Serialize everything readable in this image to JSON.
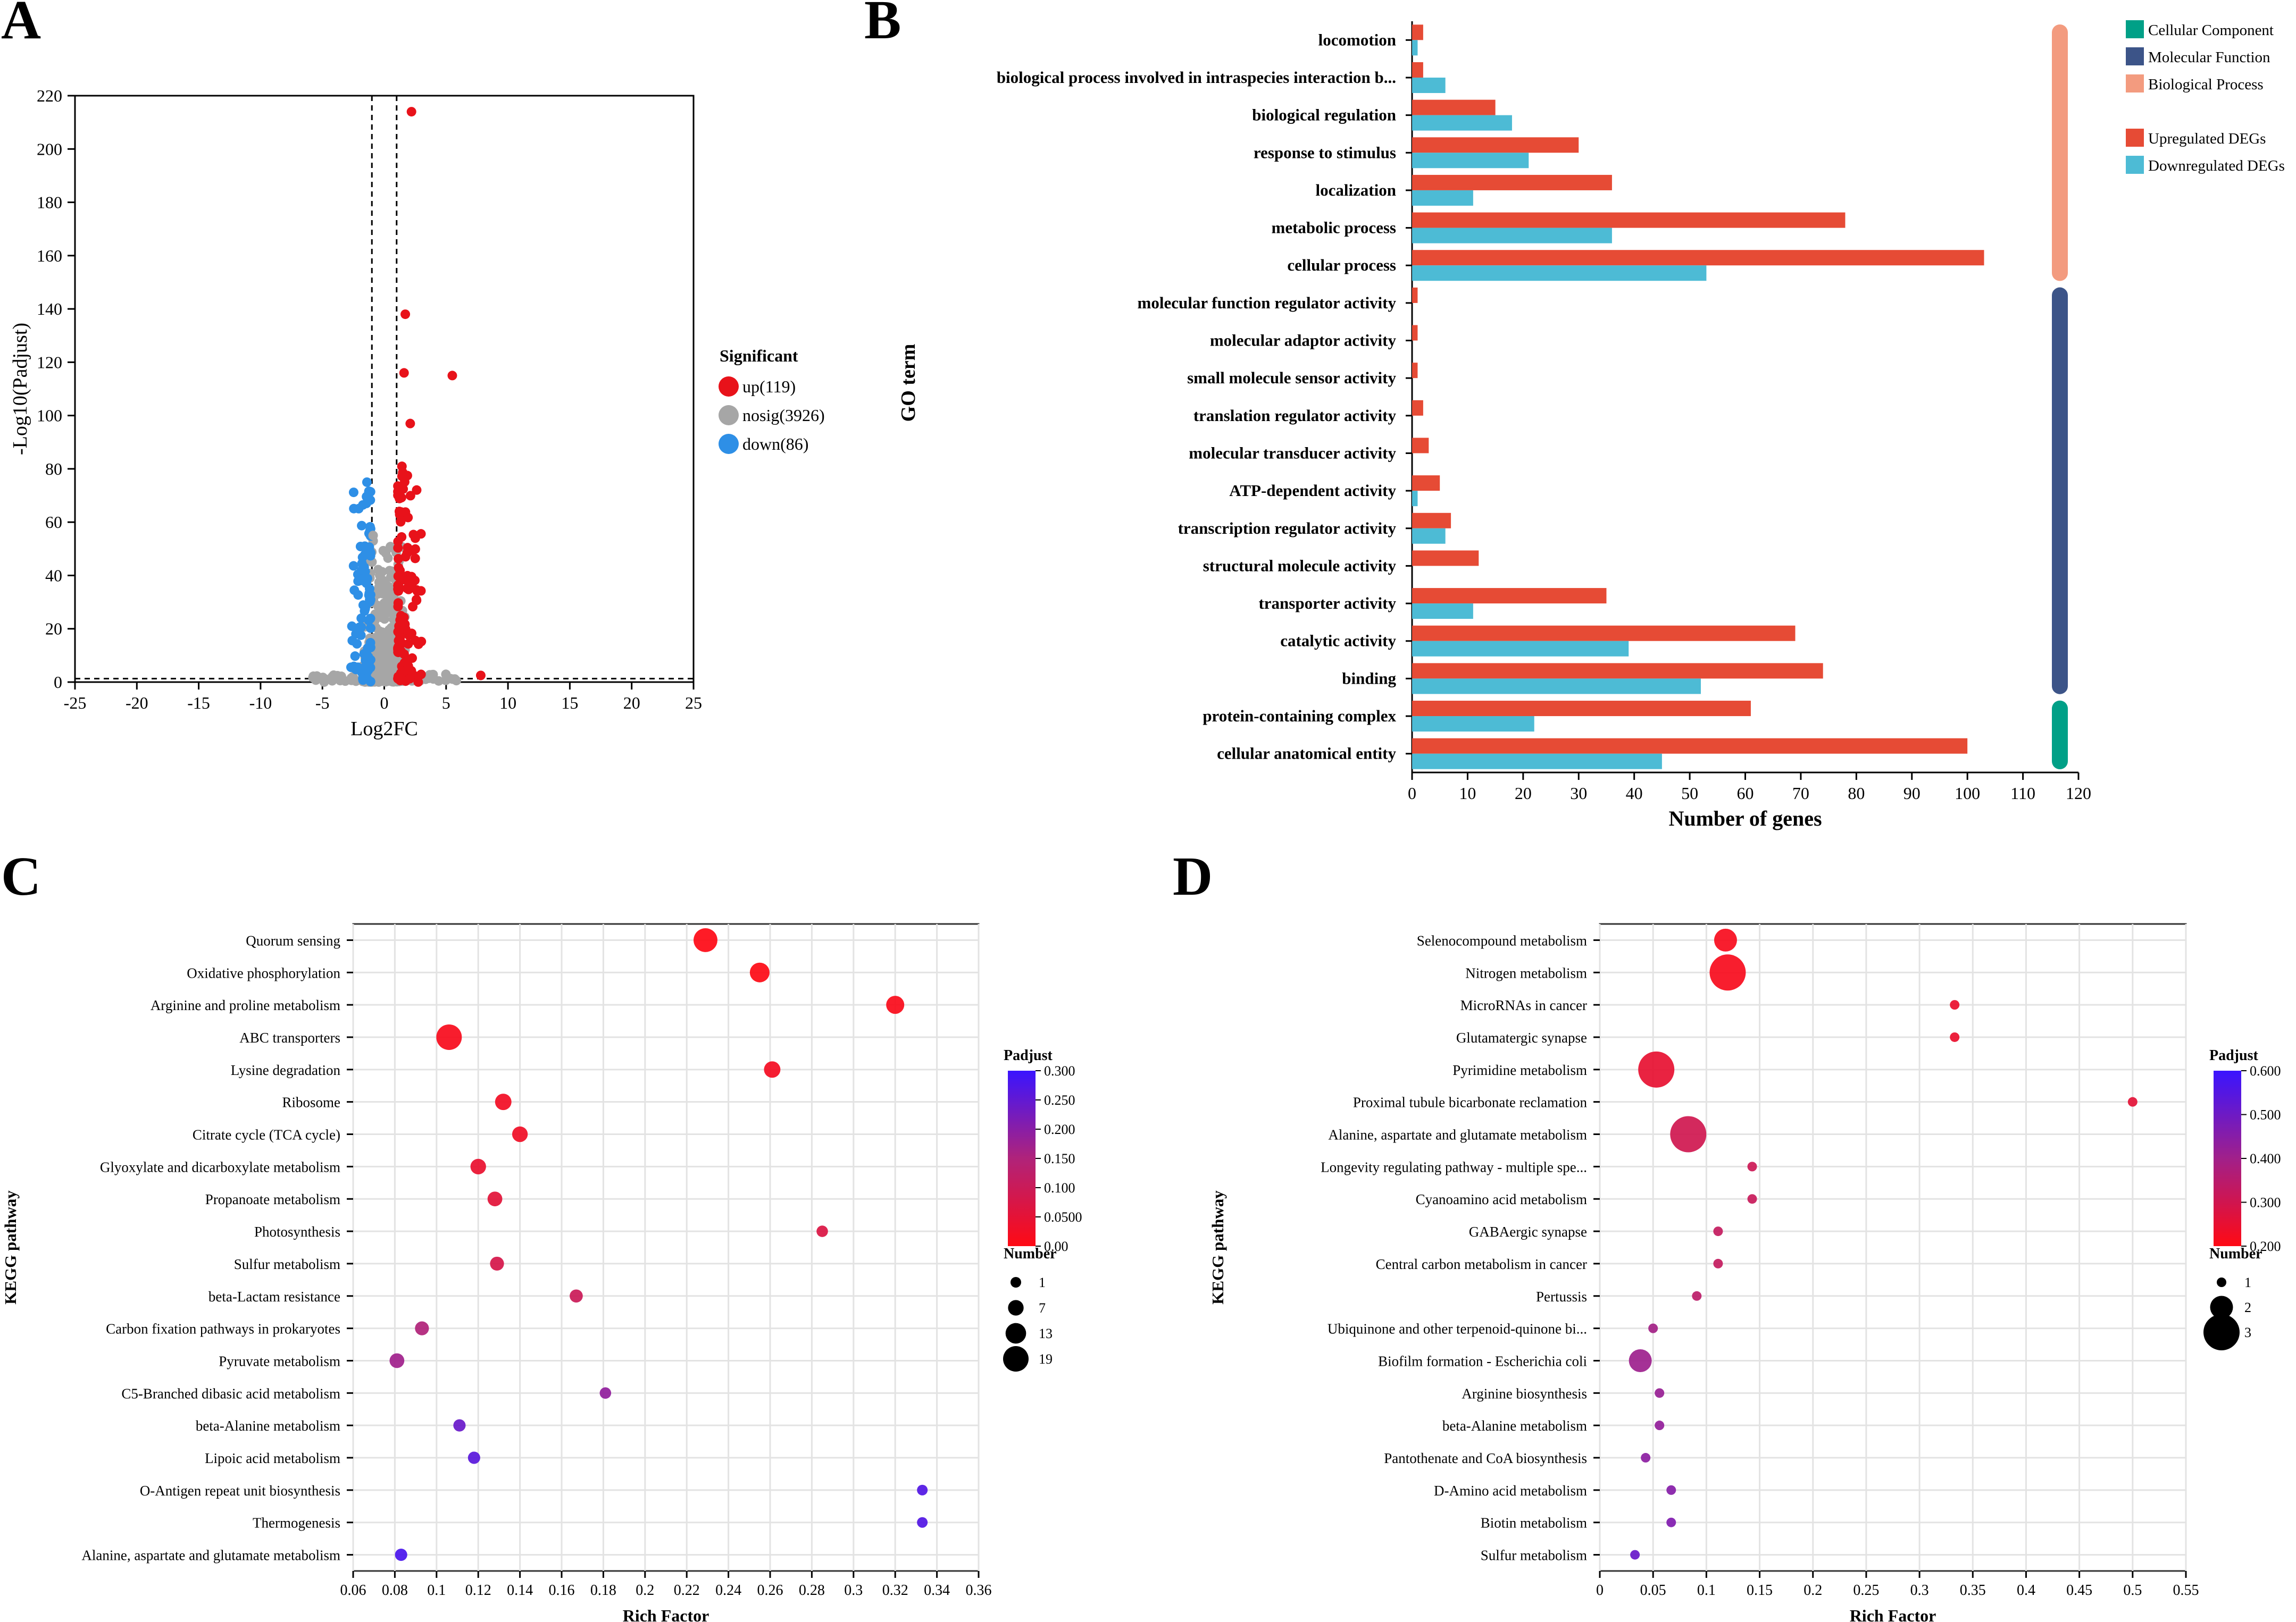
{
  "chart_data": [
    {
      "panel": "A",
      "type": "scatter",
      "title": "",
      "xlabel": "Log2FC",
      "ylabel": "-Log10(Padjust)",
      "xlim": [
        -25,
        25
      ],
      "ylim": [
        0,
        220
      ],
      "xticks": [
        -25,
        -20,
        -15,
        -10,
        -5,
        0,
        5,
        10,
        15,
        20,
        25
      ],
      "yticks": [
        0,
        20,
        40,
        60,
        80,
        100,
        120,
        140,
        160,
        180,
        200,
        220
      ],
      "fc_threshold": 1,
      "padj_threshold_line": 1.3,
      "legend": {
        "title": "Significant",
        "entries": [
          {
            "label": "up(119)",
            "color": "#e8121a",
            "key": "up"
          },
          {
            "label": "nosig(3926)",
            "color": "#a6a6a6",
            "key": "nosig"
          },
          {
            "label": "down(86)",
            "color": "#2e8fe6",
            "key": "down"
          }
        ]
      },
      "notable_points": [
        {
          "group": "up",
          "x": 2.2,
          "y": 214
        },
        {
          "group": "up",
          "x": 1.7,
          "y": 138
        },
        {
          "group": "up",
          "x": 1.6,
          "y": 116
        },
        {
          "group": "up",
          "x": 5.5,
          "y": 115
        },
        {
          "group": "up",
          "x": 2.1,
          "y": 97
        },
        {
          "group": "up",
          "x": 7.8,
          "y": 2.5
        },
        {
          "group": "down",
          "x": -1.4,
          "y": 75
        },
        {
          "group": "nosig",
          "x": -0.9,
          "y": 55
        }
      ]
    },
    {
      "panel": "B",
      "type": "bar",
      "orientation": "horizontal",
      "ylabel": "GO term",
      "xlabel": "Number of genes",
      "xlim": [
        0,
        120
      ],
      "xticks": [
        0,
        10,
        20,
        30,
        40,
        50,
        60,
        70,
        80,
        90,
        100,
        110,
        120
      ],
      "categories": [
        "locomotion",
        "biological process involved in intraspecies interaction b...",
        "biological regulation",
        "response to stimulus",
        "localization",
        "metabolic process",
        "cellular process",
        "molecular function regulator activity",
        "molecular adaptor activity",
        "small molecule sensor activity",
        "translation regulator activity",
        "molecular transducer activity",
        "ATP-dependent activity",
        "transcription regulator activity",
        "structural molecule activity",
        "transporter activity",
        "catalytic activity",
        "binding",
        "protein-containing complex",
        "cellular anatomical entity"
      ],
      "category_class": [
        "BP",
        "BP",
        "BP",
        "BP",
        "BP",
        "BP",
        "BP",
        "MF",
        "MF",
        "MF",
        "MF",
        "MF",
        "MF",
        "MF",
        "MF",
        "MF",
        "MF",
        "MF",
        "CC",
        "CC"
      ],
      "series": [
        {
          "name": "Upregulated DEGs",
          "color": "#e64b35",
          "values": [
            2,
            2,
            15,
            30,
            36,
            78,
            103,
            1,
            1,
            1,
            2,
            3,
            5,
            7,
            12,
            35,
            69,
            74,
            61,
            100
          ]
        },
        {
          "name": "Downregulated DEGs",
          "color": "#4dbbd5",
          "values": [
            1,
            6,
            18,
            21,
            11,
            36,
            53,
            0,
            0,
            0,
            0,
            0,
            1,
            6,
            0,
            11,
            39,
            52,
            22,
            45
          ]
        }
      ],
      "class_legend": [
        {
          "key": "CC",
          "label": "Cellular Component",
          "color": "#00a087"
        },
        {
          "key": "MF",
          "label": "Molecular Function",
          "color": "#3c5488"
        },
        {
          "key": "BP",
          "label": "Biological Process",
          "color": "#f39b7f"
        }
      ]
    },
    {
      "panel": "C",
      "type": "scatter",
      "subtype": "bubble",
      "ylabel": "KEGG pathway",
      "xlabel": "Rich Factor",
      "xlim": [
        0.06,
        0.36
      ],
      "xticks": [
        "0.06",
        "0.08",
        "0.1",
        "0.12",
        "0.14",
        "0.16",
        "0.18",
        "0.2",
        "0.22",
        "0.24",
        "0.26",
        "0.28",
        "0.3",
        "0.32",
        "0.34",
        "0.36"
      ],
      "color_scale": {
        "title": "Padjust",
        "min": 0,
        "max": 0.3,
        "ticks": [
          "0.300",
          "0.250",
          "0.200",
          "0.150",
          "0.100",
          "0.0500",
          "0.00"
        ]
      },
      "size_scale": {
        "title": "Number",
        "ticks": [
          1,
          7,
          13,
          19
        ]
      },
      "pathways": [
        {
          "name": "Quorum sensing",
          "rich_factor": 0.229,
          "number": 17,
          "padjust": 0.001
        },
        {
          "name": "Oxidative phosphorylation",
          "rich_factor": 0.255,
          "number": 12,
          "padjust": 0.003
        },
        {
          "name": "Arginine and proline metabolism",
          "rich_factor": 0.32,
          "number": 10,
          "padjust": 0.01
        },
        {
          "name": "ABC transporters",
          "rich_factor": 0.106,
          "number": 19,
          "padjust": 0.013
        },
        {
          "name": "Lysine degradation",
          "rich_factor": 0.261,
          "number": 8,
          "padjust": 0.02
        },
        {
          "name": "Ribosome",
          "rich_factor": 0.132,
          "number": 8,
          "padjust": 0.025
        },
        {
          "name": "Citrate cycle (TCA cycle)",
          "rich_factor": 0.14,
          "number": 7,
          "padjust": 0.028
        },
        {
          "name": "Glyoxylate and dicarboxylate metabolism",
          "rich_factor": 0.12,
          "number": 7,
          "padjust": 0.04
        },
        {
          "name": "Propanoate metabolism",
          "rich_factor": 0.128,
          "number": 6,
          "padjust": 0.055
        },
        {
          "name": "Photosynthesis",
          "rich_factor": 0.285,
          "number": 2,
          "padjust": 0.07
        },
        {
          "name": "Sulfur metabolism",
          "rich_factor": 0.129,
          "number": 5,
          "padjust": 0.08
        },
        {
          "name": "beta-Lactam resistance",
          "rich_factor": 0.167,
          "number": 4,
          "padjust": 0.1
        },
        {
          "name": "Carbon fixation pathways in prokaryotes",
          "rich_factor": 0.093,
          "number": 5,
          "padjust": 0.15
        },
        {
          "name": "Pyruvate metabolism",
          "rich_factor": 0.081,
          "number": 6,
          "padjust": 0.17
        },
        {
          "name": "C5-Branched dibasic acid metabolism",
          "rich_factor": 0.181,
          "number": 2,
          "padjust": 0.19
        },
        {
          "name": "beta-Alanine metabolism",
          "rich_factor": 0.111,
          "number": 3,
          "padjust": 0.24
        },
        {
          "name": "Lipoic acid metabolism",
          "rich_factor": 0.118,
          "number": 3,
          "padjust": 0.26
        },
        {
          "name": "O-Antigen repeat unit biosynthesis",
          "rich_factor": 0.333,
          "number": 1,
          "padjust": 0.27
        },
        {
          "name": "Thermogenesis",
          "rich_factor": 0.333,
          "number": 1,
          "padjust": 0.27
        },
        {
          "name": "Alanine, aspartate and glutamate metabolism",
          "rich_factor": 0.083,
          "number": 3,
          "padjust": 0.28
        }
      ]
    },
    {
      "panel": "D",
      "type": "scatter",
      "subtype": "bubble",
      "ylabel": "KEGG pathway",
      "xlabel": "Rich Factor",
      "xlim": [
        0,
        0.55
      ],
      "xticks": [
        "0",
        "0.05",
        "0.1",
        "0.15",
        "0.2",
        "0.25",
        "0.3",
        "0.35",
        "0.4",
        "0.45",
        "0.5",
        "0.55"
      ],
      "color_scale": {
        "title": "Padjust",
        "min": 0.2,
        "max": 0.6,
        "ticks": [
          "0.600",
          "0.500",
          "0.400",
          "0.300",
          "0.200"
        ]
      },
      "size_scale": {
        "title": "Number",
        "ticks": [
          1,
          2,
          3
        ]
      },
      "pathways": [
        {
          "name": "Selenocompound metabolism",
          "rich_factor": 0.118,
          "number": 2,
          "padjust": 0.22
        },
        {
          "name": "Nitrogen metabolism",
          "rich_factor": 0.12,
          "number": 3,
          "padjust": 0.22
        },
        {
          "name": "MicroRNAs in cancer",
          "rich_factor": 0.333,
          "number": 1,
          "padjust": 0.25
        },
        {
          "name": "Glutamatergic synapse",
          "rich_factor": 0.333,
          "number": 1,
          "padjust": 0.25
        },
        {
          "name": "Pyrimidine metabolism",
          "rich_factor": 0.053,
          "number": 3,
          "padjust": 0.26
        },
        {
          "name": "Proximal tubule bicarbonate reclamation",
          "rich_factor": 0.5,
          "number": 1,
          "padjust": 0.27
        },
        {
          "name": "Alanine, aspartate and glutamate metabolism",
          "rich_factor": 0.083,
          "number": 3,
          "padjust": 0.32
        },
        {
          "name": "Longevity regulating pathway - multiple spe...",
          "rich_factor": 0.143,
          "number": 1,
          "padjust": 0.33
        },
        {
          "name": "Cyanoamino acid metabolism",
          "rich_factor": 0.143,
          "number": 1,
          "padjust": 0.34
        },
        {
          "name": "GABAergic synapse",
          "rich_factor": 0.111,
          "number": 1,
          "padjust": 0.35
        },
        {
          "name": "Central carbon metabolism in cancer",
          "rich_factor": 0.111,
          "number": 1,
          "padjust": 0.35
        },
        {
          "name": "Pertussis",
          "rich_factor": 0.091,
          "number": 1,
          "padjust": 0.37
        },
        {
          "name": "Ubiquinone and other terpenoid-quinone bi...",
          "rich_factor": 0.05,
          "number": 1,
          "padjust": 0.42
        },
        {
          "name": "Biofilm formation - Escherichia coli",
          "rich_factor": 0.038,
          "number": 2,
          "padjust": 0.43
        },
        {
          "name": "Arginine biosynthesis",
          "rich_factor": 0.056,
          "number": 1,
          "padjust": 0.44
        },
        {
          "name": "beta-Alanine metabolism",
          "rich_factor": 0.056,
          "number": 1,
          "padjust": 0.45
        },
        {
          "name": "Pantothenate and CoA biosynthesis",
          "rich_factor": 0.043,
          "number": 1,
          "padjust": 0.46
        },
        {
          "name": "D-Amino acid metabolism",
          "rich_factor": 0.067,
          "number": 1,
          "padjust": 0.47
        },
        {
          "name": "Biotin metabolism",
          "rich_factor": 0.067,
          "number": 1,
          "padjust": 0.48
        },
        {
          "name": "Sulfur metabolism",
          "rich_factor": 0.033,
          "number": 1,
          "padjust": 0.52
        }
      ]
    }
  ]
}
